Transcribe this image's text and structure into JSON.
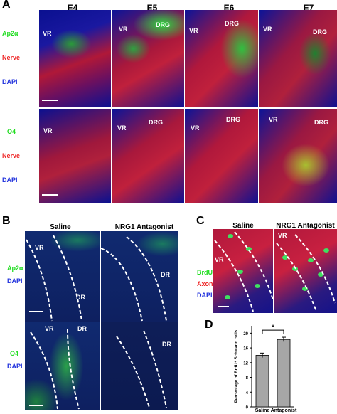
{
  "panel_letters": {
    "a": "A",
    "b": "B",
    "c": "C",
    "d": "D"
  },
  "panel_a": {
    "stages": [
      "E4",
      "E5",
      "E6",
      "E7"
    ],
    "top_row_labels": {
      "marker": "Ap2α",
      "nerve": "Nerve",
      "dapi": "DAPI"
    },
    "bottom_row_labels": {
      "marker": "O4",
      "nerve": "Nerve",
      "dapi": "DAPI"
    },
    "vr": "VR",
    "drg": "DRG"
  },
  "panel_b": {
    "columns": [
      "Saline",
      "NRG1 Antagonist"
    ],
    "top_row_labels": {
      "marker": "Ap2α",
      "dapi": "DAPI"
    },
    "bottom_row_labels": {
      "marker": "O4",
      "dapi": "DAPI"
    },
    "vr": "VR",
    "dr": "DR"
  },
  "panel_c": {
    "columns": [
      "Saline",
      "NRG1 Antagonist"
    ],
    "labels": {
      "brdu": "BrdU",
      "axon": "Axon",
      "dapi": "DAPI"
    },
    "vr": "VR"
  },
  "chart_data": {
    "type": "bar",
    "categories": [
      "Saline",
      "Antagonist"
    ],
    "values": [
      14.0,
      18.3
    ],
    "errors": [
      0.6,
      0.6
    ],
    "ylabel": "Percentage of BrdU⁺ Schwann cells",
    "ylim": [
      0,
      22
    ],
    "yticks": [
      0,
      4,
      8,
      12,
      16,
      20
    ],
    "significance": "*",
    "bar_color": "#a6a6a6"
  }
}
